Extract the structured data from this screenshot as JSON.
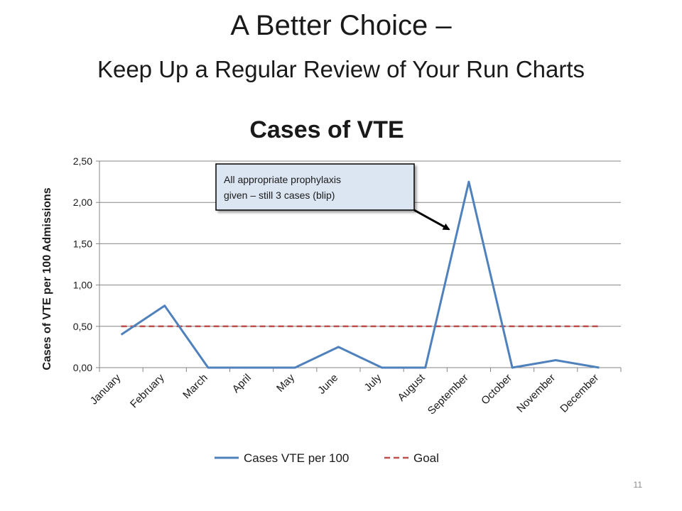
{
  "slide": {
    "title": "A Better Choice –",
    "subtitle": "Keep Up a Regular Review of Your Run Charts",
    "page_number": "11"
  },
  "colors": {
    "series": "#4f81bd",
    "goal": "#c0504d",
    "gridline": "#858585",
    "callout_fill": "#dce6f2",
    "callout_border": "#000000"
  },
  "callout": {
    "lines": [
      "All appropriate prophylaxis",
      "given – still 3 cases (blip)"
    ],
    "points_to": "September"
  },
  "chart_data": {
    "type": "line",
    "title": "Cases of VTE",
    "xlabel": "",
    "ylabel": "Cases of VTE per 100 Admissions",
    "categories": [
      "January",
      "February",
      "March",
      "April",
      "May",
      "June",
      "July",
      "August",
      "September",
      "October",
      "November",
      "December"
    ],
    "ylim": [
      0,
      2.5
    ],
    "yticks": [
      "0,00",
      "0,50",
      "1,00",
      "1,50",
      "2,00",
      "2,50"
    ],
    "grid": true,
    "legend_position": "bottom",
    "series": [
      {
        "name": "Cases VTE per 100",
        "values": [
          0.4,
          0.75,
          0,
          0,
          0,
          0.25,
          0,
          0,
          2.25,
          0,
          0.09,
          0
        ],
        "style": "solid",
        "color": "#4f81bd"
      },
      {
        "name": "Goal",
        "values": [
          0.5,
          0.5,
          0.5,
          0.5,
          0.5,
          0.5,
          0.5,
          0.5,
          0.5,
          0.5,
          0.5,
          0.5
        ],
        "style": "dashed",
        "color": "#c0504d"
      }
    ]
  }
}
